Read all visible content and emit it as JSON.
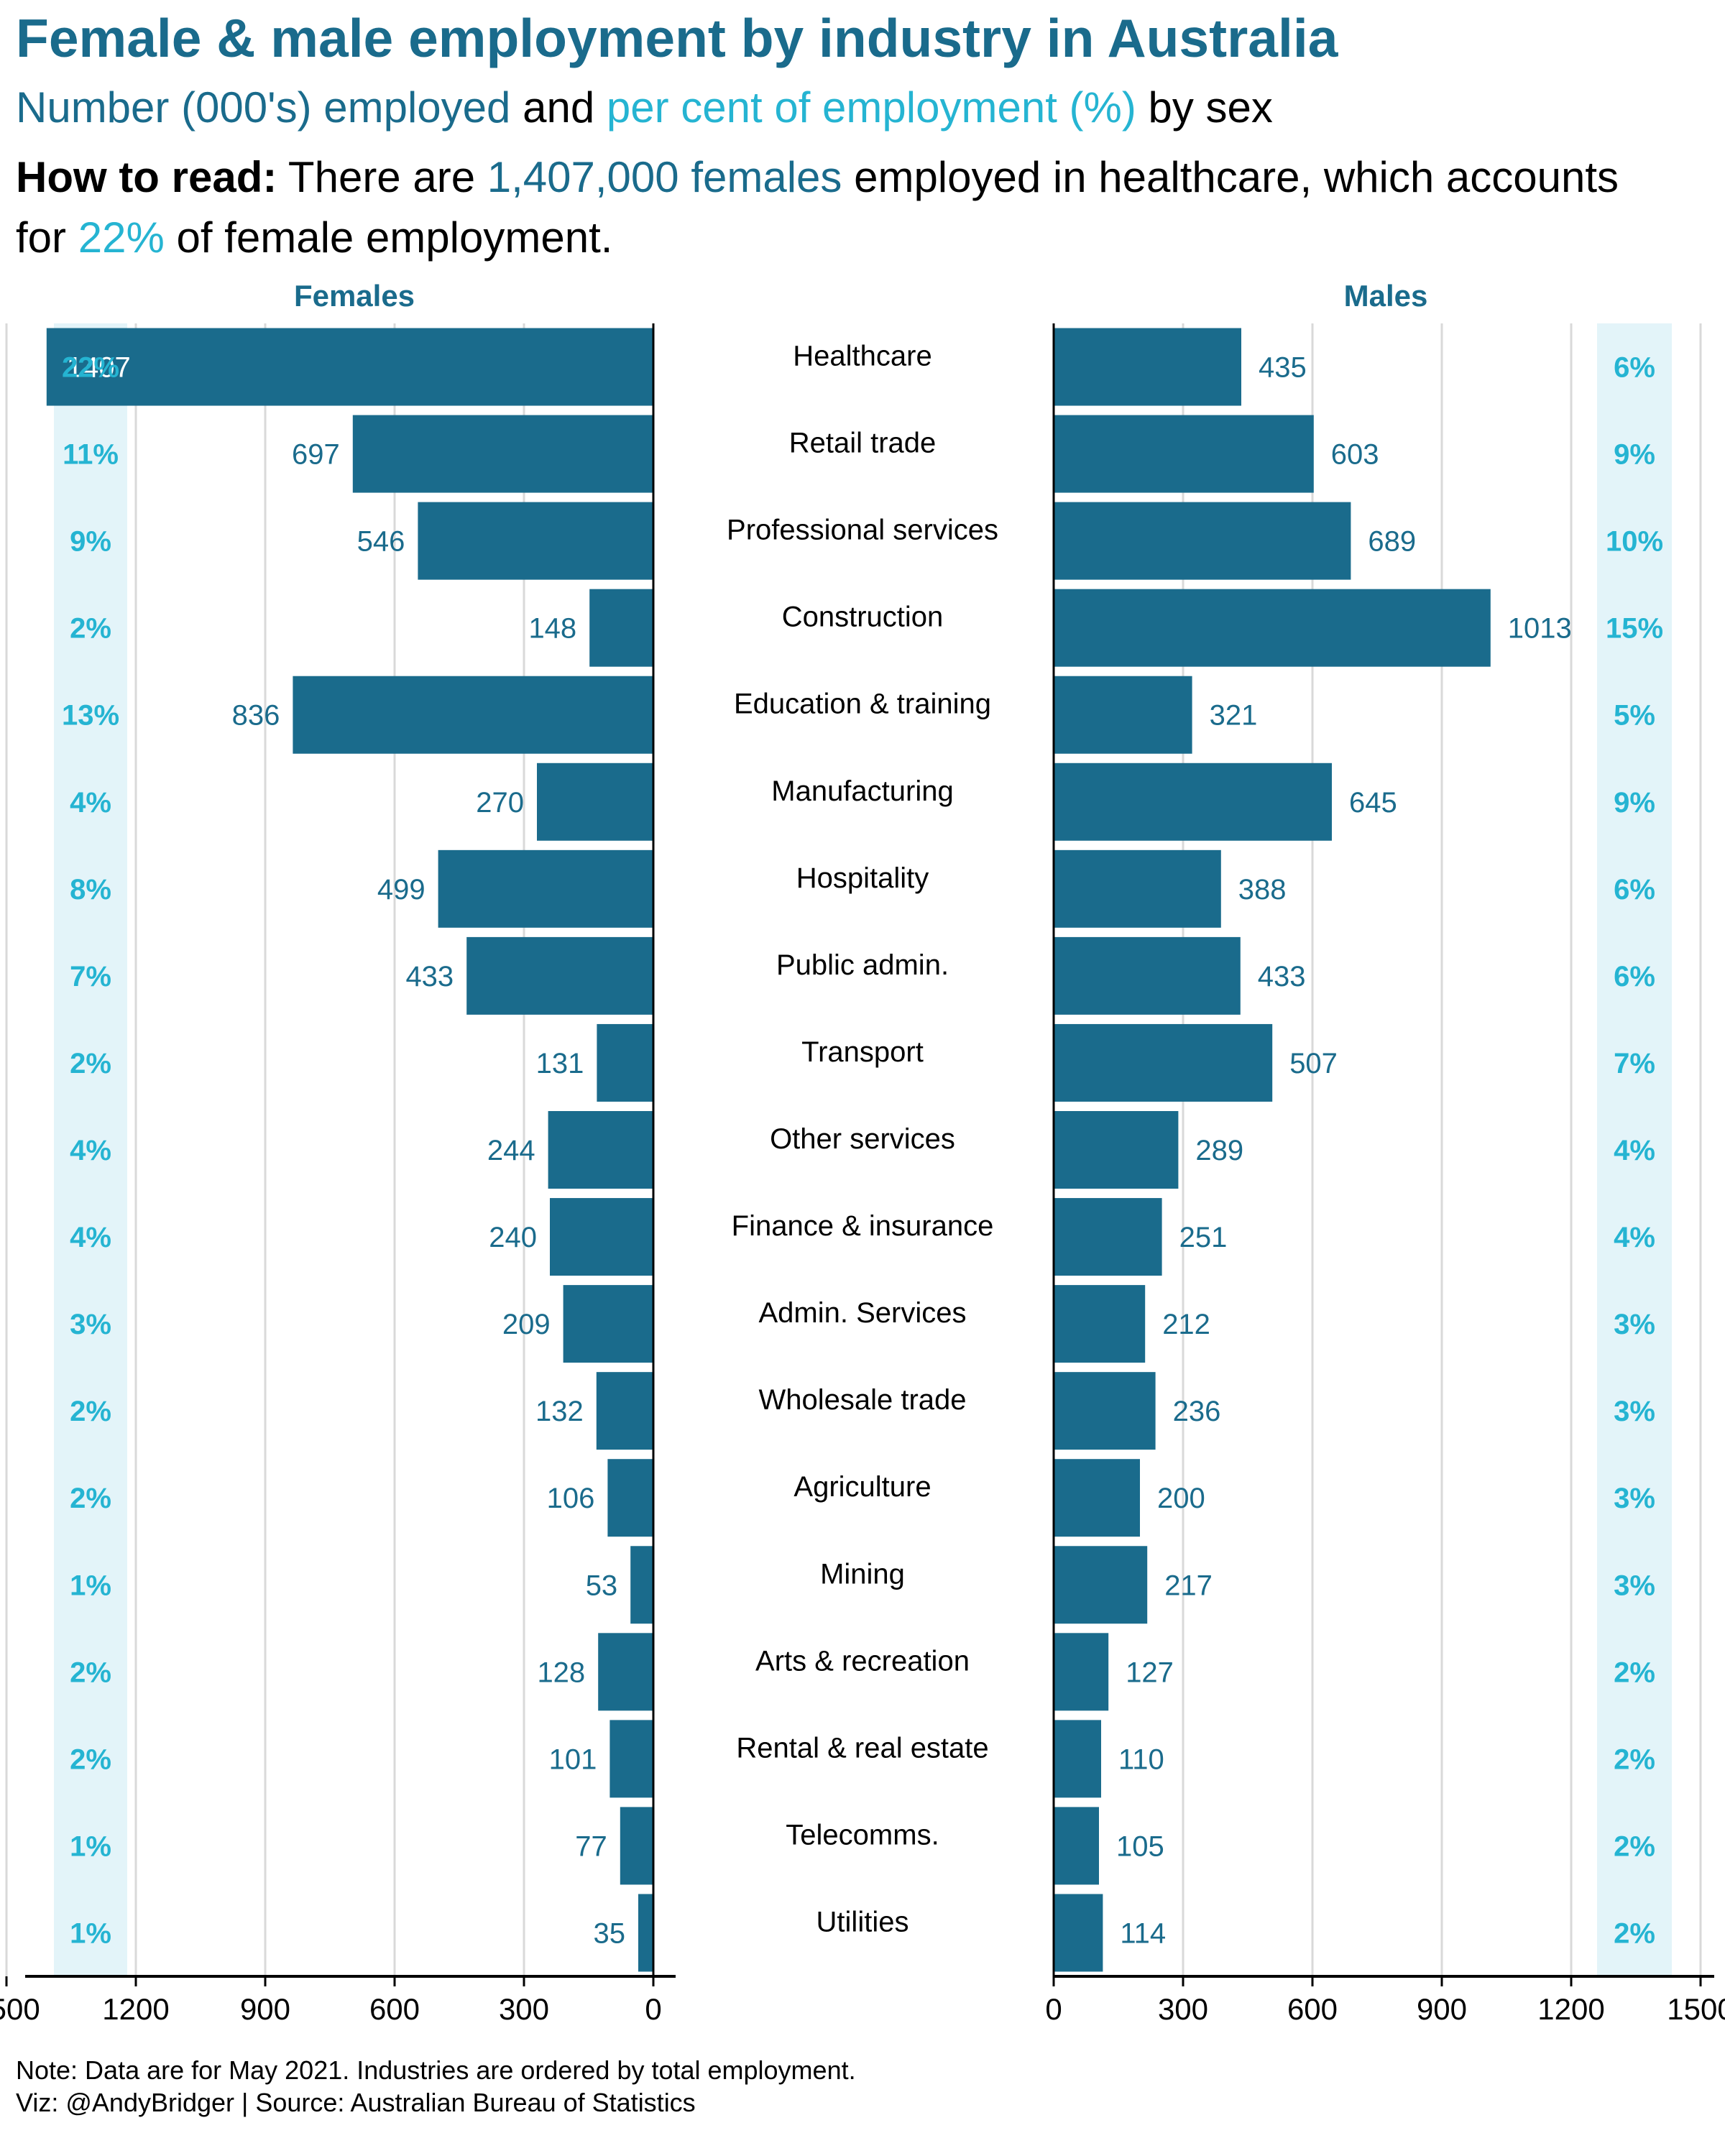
{
  "title": "Female & male employment by industry in Australia",
  "subtitle": {
    "part1": "Number (000's) employed",
    "part2": " and ",
    "part3": "per cent of employment (%)",
    "part4": " by sex"
  },
  "how_to_read": {
    "label": "How to read:",
    "text1": " There are ",
    "highlight1": "1,407,000 females",
    "text2": " employed in healthcare, which accounts for ",
    "highlight2": "22%",
    "text3": " of female employment."
  },
  "note": "Note: Data are for May 2021. Industries are ordered by total employment.",
  "credit": "Viz: @AndyBridger | Source: Australian Bureau of Statistics",
  "colors": {
    "bar": "#1a6b8c",
    "pct_text": "#25b4d2",
    "pct_band": "#e3f4f9",
    "grid": "#d9d9d9",
    "header": "#1a6b8c"
  },
  "chart_data": {
    "type": "bar",
    "orientation": "horizontal",
    "layout": "back-to-back",
    "panel_titles": [
      "Females",
      "Males"
    ],
    "categories": [
      "Healthcare",
      "Retail trade",
      "Professional services",
      "Construction",
      "Education & training",
      "Manufacturing",
      "Hospitality",
      "Public admin.",
      "Transport",
      "Other services",
      "Finance & insurance",
      "Admin. Services",
      "Wholesale trade",
      "Agriculture",
      "Mining",
      "Arts & recreation",
      "Rental & real estate",
      "Telecomms.",
      "Utilities"
    ],
    "series": [
      {
        "name": "Females",
        "values": [
          1407,
          697,
          546,
          148,
          836,
          270,
          499,
          433,
          131,
          244,
          240,
          209,
          132,
          106,
          53,
          128,
          101,
          77,
          35
        ],
        "percent_labels": [
          "22%",
          "11%",
          "9%",
          "2%",
          "13%",
          "4%",
          "8%",
          "7%",
          "2%",
          "4%",
          "4%",
          "3%",
          "2%",
          "2%",
          "1%",
          "2%",
          "2%",
          "1%",
          "1%"
        ]
      },
      {
        "name": "Males",
        "values": [
          435,
          603,
          689,
          1013,
          321,
          645,
          388,
          433,
          507,
          289,
          251,
          212,
          236,
          200,
          217,
          127,
          110,
          105,
          114
        ],
        "percent_labels": [
          "6%",
          "9%",
          "10%",
          "15%",
          "5%",
          "9%",
          "6%",
          "6%",
          "7%",
          "4%",
          "4%",
          "3%",
          "3%",
          "3%",
          "3%",
          "2%",
          "2%",
          "2%",
          "2%"
        ]
      }
    ],
    "xlim": [
      0,
      1500
    ],
    "x_ticks": [
      0,
      300,
      600,
      900,
      1200,
      1500
    ],
    "female_axis_reversed": true,
    "grid": true
  }
}
